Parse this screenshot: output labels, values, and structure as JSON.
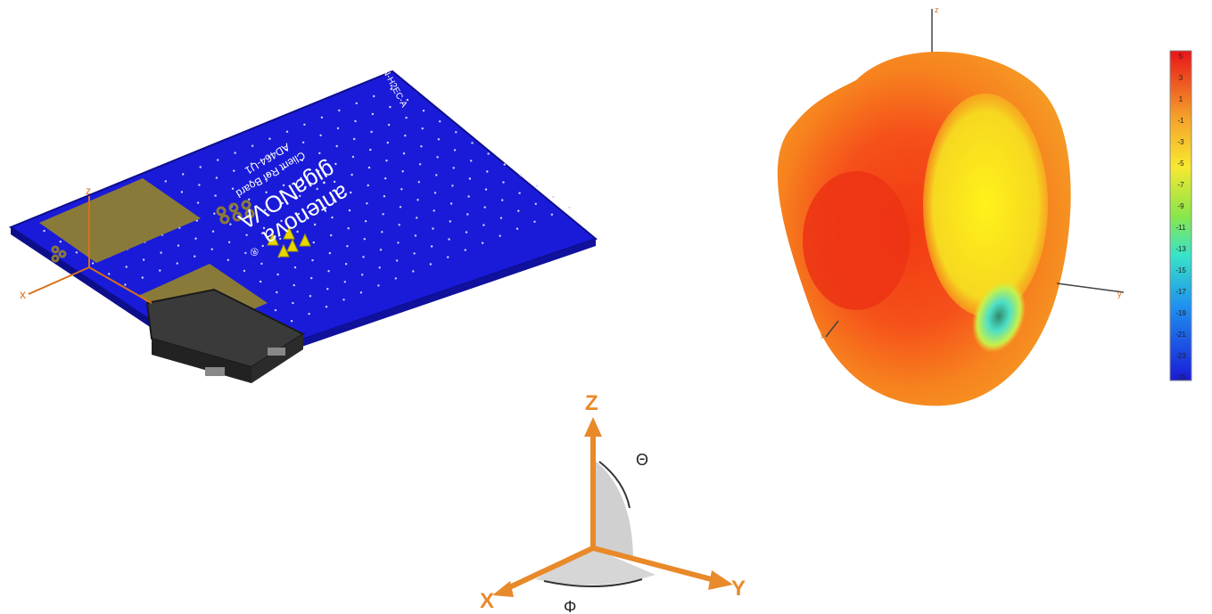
{
  "pcb": {
    "logo_text": "antenova",
    "logo_mark": "®",
    "product_text": "gigaNOVA",
    "board_line1": "Client Ref Board",
    "board_line2": "AD464-U1",
    "board_code": "AN-H2EC-A",
    "axis_x": "x",
    "axis_z": "z",
    "colors": {
      "board": "#1a1bd8",
      "pads": "#8a7a3a",
      "component": "#2e2e2e",
      "pins": "#e8d800"
    }
  },
  "pattern": {
    "axis_z": "z",
    "axis_y": "y",
    "axis_x": "x"
  },
  "colorbar": {
    "ticks": [
      "5",
      "3",
      "1",
      "-1",
      "-3",
      "-5",
      "-7",
      "-9",
      "-11",
      "-13",
      "-15",
      "-17",
      "-19",
      "-21",
      "-23",
      "-25"
    ]
  },
  "coordinate_system": {
    "axis_z": "Z",
    "axis_y": "Y",
    "axis_x": "X",
    "theta": "Θ",
    "phi": "Φ",
    "colors": {
      "axis": "#e8892a"
    }
  }
}
